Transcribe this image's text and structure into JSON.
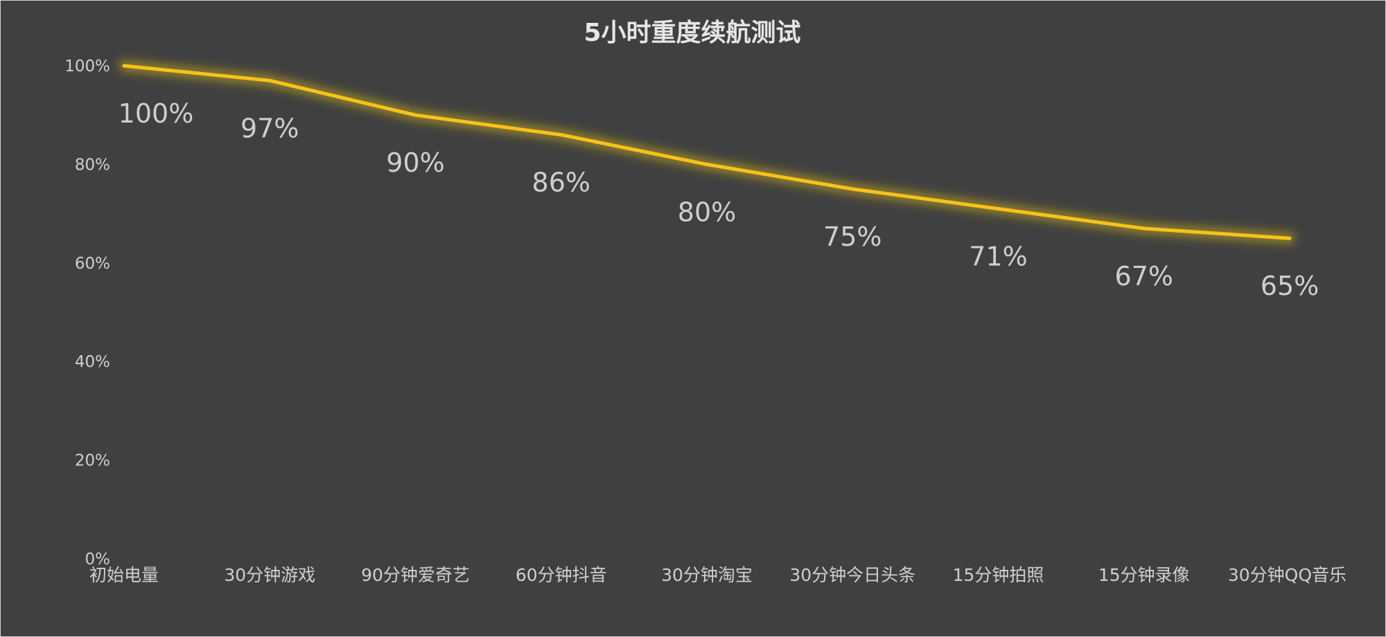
{
  "chart_data": {
    "type": "line",
    "title": "5小时重度续航测试",
    "categories": [
      "初始电量",
      "30分钟游戏",
      "90分钟爱奇艺",
      "60分钟抖音",
      "30分钟淘宝",
      "30分钟今日头条",
      "15分钟拍照",
      "15分钟录像",
      "30分钟QQ音乐"
    ],
    "series": [
      {
        "values": [
          100,
          97,
          90,
          86,
          80,
          75,
          71,
          67,
          65
        ],
        "labels": [
          "100%",
          "97%",
          "90%",
          "86%",
          "80%",
          "75%",
          "71%",
          "67%",
          "65%"
        ]
      }
    ],
    "y_ticks": [
      0,
      20,
      40,
      60,
      80,
      100
    ],
    "y_tick_labels": [
      "0%",
      "20%",
      "40%",
      "60%",
      "80%",
      "100%"
    ],
    "ylim": [
      0,
      100
    ],
    "xlabel": "",
    "ylabel": "",
    "grid": false,
    "legend": "none"
  },
  "colors": {
    "background": "#404040",
    "line": "#F7C316",
    "glow": "#E8C31A",
    "title": "#E6E6E6",
    "axis_text": "#D0D0D0",
    "data_label": "#CFCFCF"
  }
}
